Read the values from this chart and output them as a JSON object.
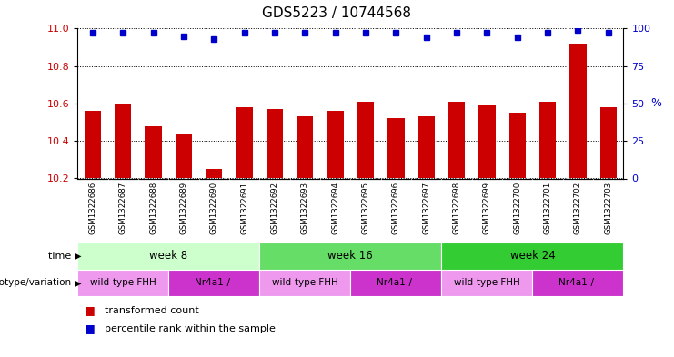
{
  "title": "GDS5223 / 10744568",
  "samples": [
    "GSM1322686",
    "GSM1322687",
    "GSM1322688",
    "GSM1322689",
    "GSM1322690",
    "GSM1322691",
    "GSM1322692",
    "GSM1322693",
    "GSM1322694",
    "GSM1322695",
    "GSM1322696",
    "GSM1322697",
    "GSM1322698",
    "GSM1322699",
    "GSM1322700",
    "GSM1322701",
    "GSM1322702",
    "GSM1322703"
  ],
  "bar_values": [
    10.56,
    10.6,
    10.48,
    10.44,
    10.25,
    10.58,
    10.57,
    10.53,
    10.56,
    10.61,
    10.52,
    10.53,
    10.61,
    10.59,
    10.55,
    10.61,
    10.92,
    10.58
  ],
  "percentile_values": [
    97,
    97,
    97,
    95,
    93,
    97,
    97,
    97,
    97,
    97,
    97,
    94,
    97,
    97,
    94,
    97,
    99,
    97
  ],
  "ylim_left": [
    10.2,
    11.0
  ],
  "ylim_right": [
    0,
    100
  ],
  "yticks_left": [
    10.2,
    10.4,
    10.6,
    10.8,
    11.0
  ],
  "yticks_right": [
    0,
    25,
    50,
    75,
    100
  ],
  "bar_color": "#cc0000",
  "dot_color": "#0000cc",
  "grid_color": "#000000",
  "time_groups": [
    {
      "label": "week 8",
      "start": 0,
      "end": 6,
      "color": "#ccffcc"
    },
    {
      "label": "week 16",
      "start": 6,
      "end": 12,
      "color": "#66dd66"
    },
    {
      "label": "week 24",
      "start": 12,
      "end": 18,
      "color": "#33cc33"
    }
  ],
  "genotype_groups": [
    {
      "label": "wild-type FHH",
      "start": 0,
      "end": 3,
      "color": "#ee99ee"
    },
    {
      "label": "Nr4a1-/-",
      "start": 3,
      "end": 6,
      "color": "#cc33cc"
    },
    {
      "label": "wild-type FHH",
      "start": 6,
      "end": 9,
      "color": "#ee99ee"
    },
    {
      "label": "Nr4a1-/-",
      "start": 9,
      "end": 12,
      "color": "#cc33cc"
    },
    {
      "label": "wild-type FHH",
      "start": 12,
      "end": 15,
      "color": "#ee99ee"
    },
    {
      "label": "Nr4a1-/-",
      "start": 15,
      "end": 18,
      "color": "#cc33cc"
    }
  ],
  "time_label": "time",
  "genotype_label": "genotype/variation",
  "legend_items": [
    {
      "label": "transformed count",
      "color": "#cc0000"
    },
    {
      "label": "percentile rank within the sample",
      "color": "#0000cc"
    }
  ],
  "xtick_bg_color": "#cccccc",
  "fig_bg_color": "#ffffff",
  "title_fontsize": 11,
  "bar_width": 0.55
}
